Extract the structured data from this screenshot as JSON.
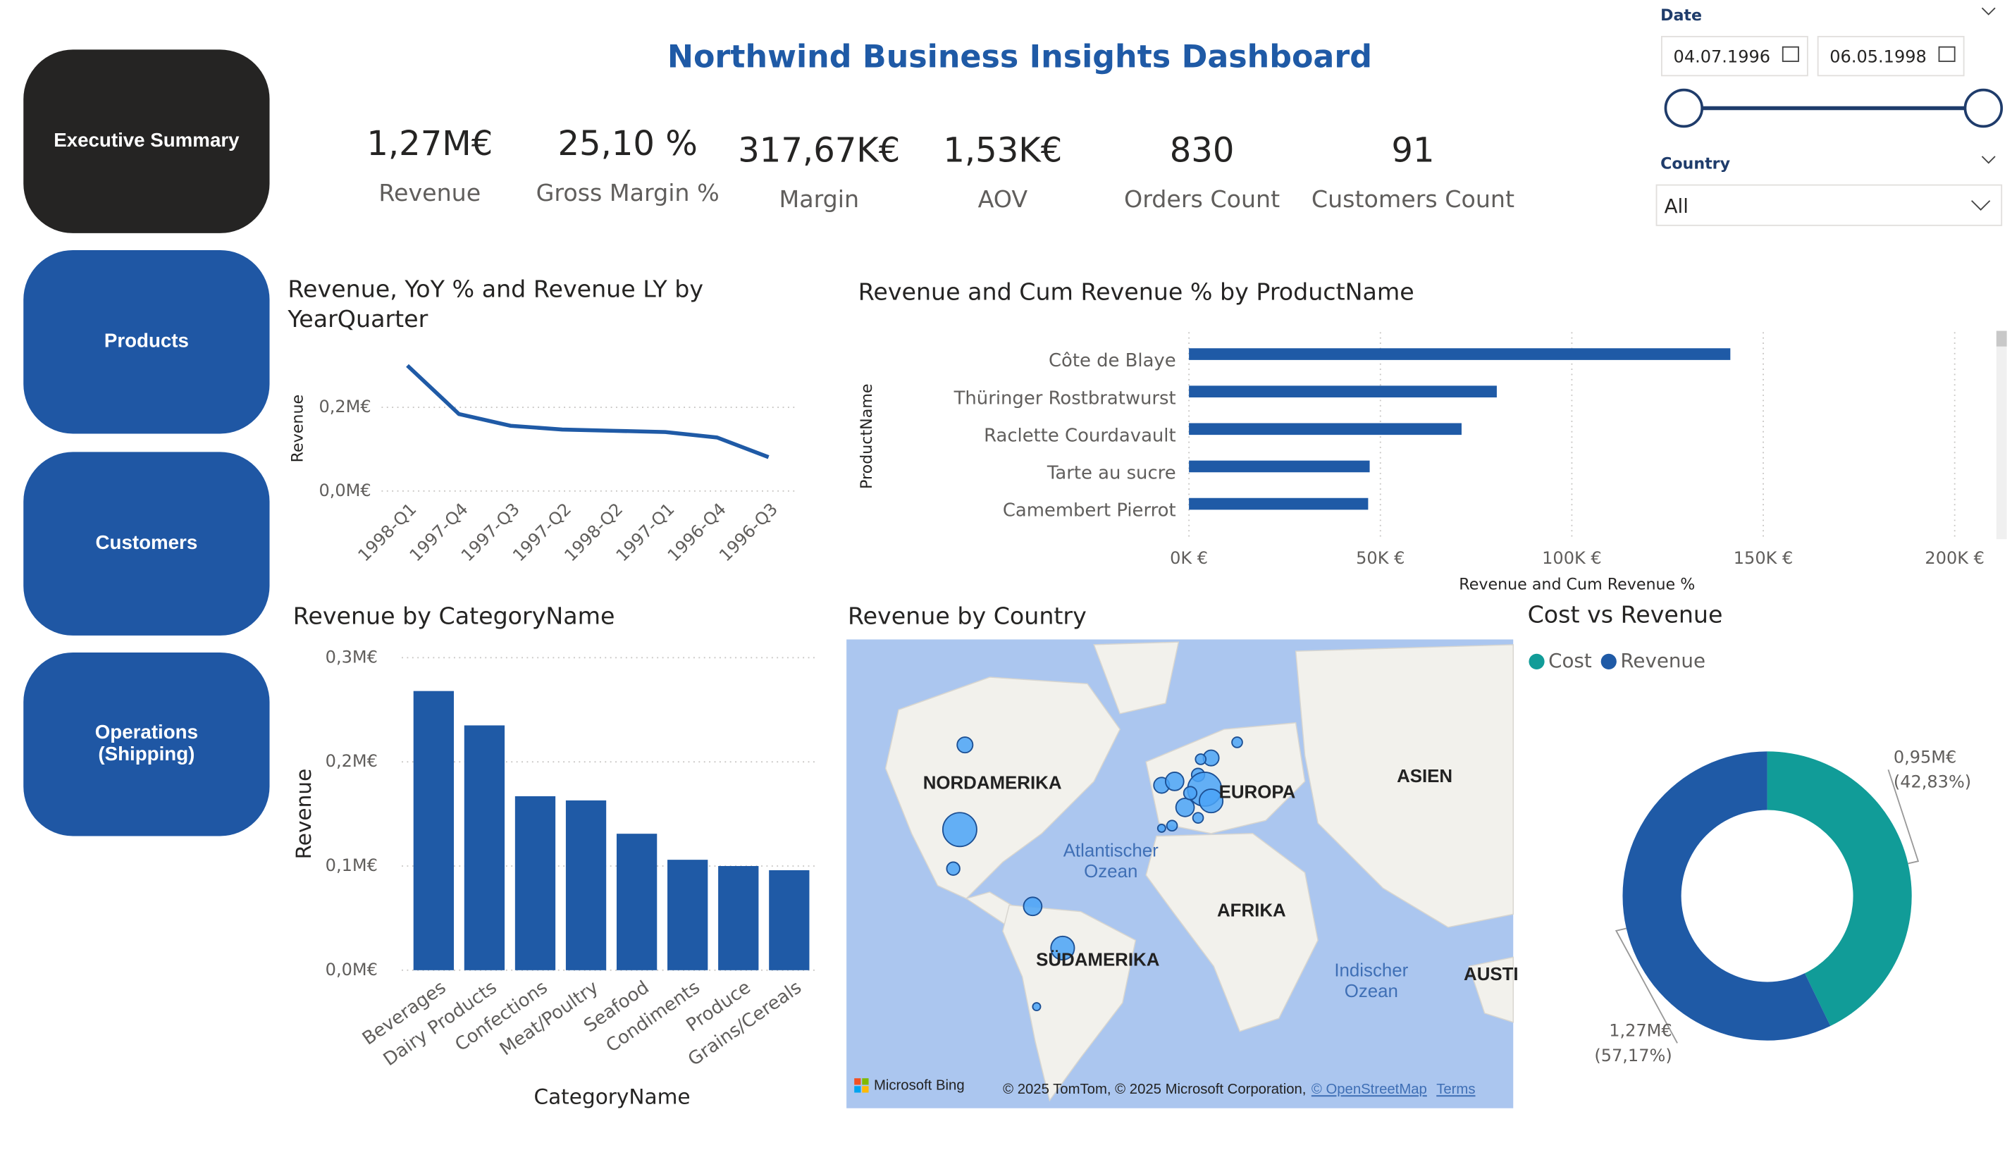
{
  "nav": [
    [
      "Executive Summary"
    ],
    [
      "Products"
    ],
    [
      "Customers"
    ],
    [
      "Operations",
      "(Shipping)"
    ]
  ],
  "title": "Northwind Business Insights Dashboard",
  "kpis": [
    {
      "value": "1,27M€",
      "label": "Revenue"
    },
    {
      "value": "25,10 %",
      "label": "Gross Margin %"
    },
    {
      "value": "317,67K€",
      "label": "Margin"
    },
    {
      "value": "1,53K€",
      "label": "AOV"
    },
    {
      "value": "830",
      "label": "Orders Count"
    },
    {
      "value": "91",
      "label": "Customers Count"
    }
  ],
  "filters": {
    "date": {
      "label": "Date",
      "start": "04.07.1996",
      "end": "06.05.1998"
    },
    "country": {
      "label": "Country",
      "value": "All"
    }
  },
  "chart_data": [
    {
      "type": "line",
      "title": "Revenue, YoY % and Revenue LY by YearQuarter",
      "y_label": "Revenue",
      "categories": [
        "1998-Q1",
        "1997-Q4",
        "1997-Q3",
        "1997-Q2",
        "1998-Q2",
        "1997-Q1",
        "1996-Q4",
        "1996-Q3"
      ],
      "values": [
        0.3,
        0.184,
        0.156,
        0.147,
        0.144,
        0.141,
        0.128,
        0.081
      ],
      "color": "#1f5aa6",
      "ylim": [
        0,
        0.33
      ],
      "yticks": [
        {
          "value": 0,
          "label": "0,0M€"
        },
        {
          "value": 0.2,
          "label": "0,2M€"
        }
      ],
      "grid": true
    },
    {
      "type": "hbar",
      "title": "Revenue and Cum Revenue % by ProductName",
      "x_label": "Revenue and Cum Revenue %",
      "y_label": "ProductName",
      "categories": [
        "Côte de Blaye",
        "Thüringer Rostbratwurst",
        "Raclette Courdavault",
        "Tarte au sucre",
        "Camembert Pierrot"
      ],
      "values": [
        141400,
        80400,
        71200,
        47200,
        46800
      ],
      "color": "#1f5aa6",
      "xlim": [
        0,
        202000
      ],
      "xticks": [
        {
          "value": 0,
          "label": "0K €"
        },
        {
          "value": 50000,
          "label": "50K €"
        },
        {
          "value": 100000,
          "label": "100K €"
        },
        {
          "value": 150000,
          "label": "150K €"
        },
        {
          "value": 200000,
          "label": "200K €"
        }
      ],
      "grid": true
    },
    {
      "type": "bar",
      "title": "Revenue by CategoryName",
      "x_label": "CategoryName",
      "y_label": "Revenue",
      "categories": [
        "Beverages",
        "Dairy Products",
        "Confections",
        "Meat/Poultry",
        "Seafood",
        "Condiments",
        "Produce",
        "Grains/Cereals"
      ],
      "values": [
        0.268,
        0.235,
        0.167,
        0.163,
        0.131,
        0.106,
        0.1,
        0.096
      ],
      "color": "#1f5aa6",
      "ylim": [
        0,
        0.3
      ],
      "yticks": [
        {
          "value": 0,
          "label": "0,0M€"
        },
        {
          "value": 0.1,
          "label": "0,1M€"
        },
        {
          "value": 0.2,
          "label": "0,2M€"
        },
        {
          "value": 0.3,
          "label": "0,3M€"
        }
      ],
      "grid": true
    },
    {
      "type": "map",
      "title": "Revenue by Country",
      "labels": [
        "NORDAMERIKA",
        "EUROPA",
        "ASIEN",
        "AFRIKA",
        "SÜDAMERIKA",
        "AUSTI"
      ],
      "oceans": [
        [
          "Atlantischer",
          "Ozean"
        ],
        [
          "Indischer",
          "Ozean"
        ]
      ],
      "credits": [
        "Microsoft Bing",
        "© 2025 TomTom, © 2025 Microsoft Corporation,",
        "© OpenStreetMap",
        "Terms"
      ]
    },
    {
      "type": "donut",
      "title": "Cost vs Revenue",
      "series": [
        {
          "name": "Cost",
          "color": "#119c98",
          "value": 0.95,
          "value_label": "0,95M€",
          "percent_label": "(42,83%)"
        },
        {
          "name": "Revenue",
          "color": "#1f5aa6",
          "value": 1.27,
          "value_label": "1,27M€",
          "percent_label": "(57,17%)"
        }
      ]
    }
  ]
}
